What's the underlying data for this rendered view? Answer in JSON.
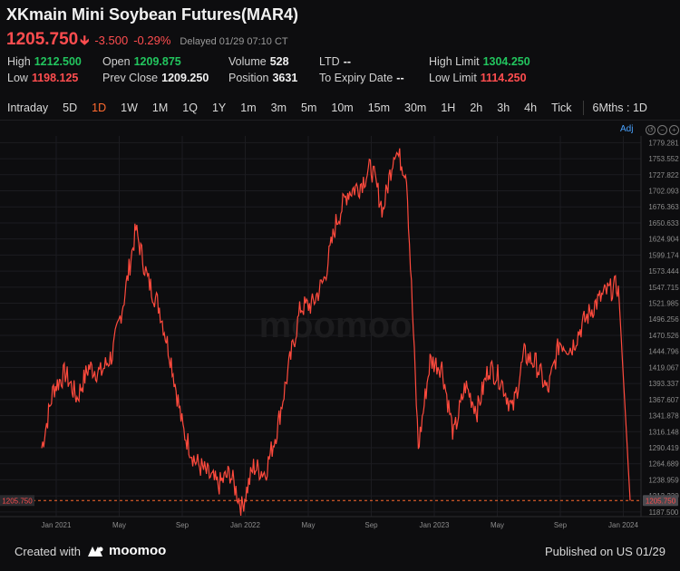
{
  "header": {
    "title": "XKmain Mini Soybean Futures(MAR4)",
    "price": "1205.750",
    "change": "-3.500",
    "change_pct": "-0.29%",
    "status": "Delayed 01/29 07:10 CT"
  },
  "stats": {
    "high_label": "High",
    "high": "1212.500",
    "low_label": "Low",
    "low": "1198.125",
    "open_label": "Open",
    "open": "1209.875",
    "prev_close_label": "Prev Close",
    "prev_close": "1209.250",
    "volume_label": "Volume",
    "volume": "528",
    "position_label": "Position",
    "position": "3631",
    "ltd_label": "LTD",
    "ltd": "--",
    "expiry_label": "To Expiry Date",
    "expiry": "--",
    "high_limit_label": "High Limit",
    "high_limit": "1304.250",
    "low_limit_label": "Low Limit",
    "low_limit": "1114.250"
  },
  "tabs": [
    "Intraday",
    "5D",
    "1D",
    "1W",
    "1M",
    "1Q",
    "1Y",
    "1m",
    "3m",
    "5m",
    "10m",
    "15m",
    "30m",
    "1H",
    "2h",
    "3h",
    "4h",
    "Tick"
  ],
  "active_tab": "1D",
  "period_label": "6Mths : 1D",
  "adj_label": "Adj",
  "watermark": "moomoo",
  "footer": {
    "created": "Created with",
    "brand": "moomoo",
    "published": "Published on US 01/29"
  },
  "colors": {
    "up": "#22c55e",
    "down": "#ff4d4f",
    "line": "#ff4a3d",
    "accent": "#ff6a2f"
  },
  "chart_data": {
    "type": "line",
    "x_ticks": [
      "Jan 2021",
      "May",
      "Sep",
      "Jan 2022",
      "May",
      "Sep",
      "Jan 2023",
      "May",
      "Sep",
      "Jan 2024"
    ],
    "y_ticks": [
      1187.5,
      1213.23,
      1238.959,
      1264.689,
      1290.419,
      1316.148,
      1341.878,
      1367.607,
      1393.337,
      1419.067,
      1444.796,
      1470.526,
      1496.256,
      1521.985,
      1547.715,
      1573.444,
      1599.174,
      1624.904,
      1650.633,
      1676.363,
      1702.093,
      1727.822,
      1753.552,
      1779.281
    ],
    "ylim": [
      1180,
      1790
    ],
    "last_value": 1205.75,
    "series": [
      {
        "x": [
          0,
          0.02,
          0.04,
          0.06,
          0.08,
          0.1,
          0.12,
          0.14,
          0.16,
          0.18,
          0.2,
          0.22,
          0.24,
          0.26,
          0.28,
          0.3,
          0.32,
          0.34,
          0.36,
          0.38,
          0.4,
          0.42,
          0.44,
          0.46,
          0.48,
          0.5,
          0.52,
          0.54,
          0.56,
          0.58,
          0.6,
          0.62,
          0.64,
          0.66,
          0.68,
          0.7,
          0.72,
          0.74,
          0.76,
          0.78,
          0.8,
          0.82,
          0.84,
          0.86,
          0.88,
          0.9,
          0.92,
          0.94,
          0.96,
          0.98,
          1.0
        ],
        "values": [
          1290,
          1385,
          1410,
          1370,
          1420,
          1410,
          1440,
          1530,
          1640,
          1560,
          1515,
          1430,
          1320,
          1270,
          1250,
          1230,
          1250,
          1195,
          1260,
          1250,
          1320,
          1420,
          1515,
          1520,
          1560,
          1650,
          1700,
          1710,
          1740,
          1670,
          1770,
          1730,
          1290,
          1430,
          1420,
          1310,
          1390,
          1350,
          1420,
          1400,
          1350,
          1440,
          1425,
          1380,
          1460,
          1450,
          1490,
          1520,
          1540,
          1550,
          1205.75
        ],
        "sample_dates": [
          "2020-12-10",
          "2021-01-01",
          "2021-01-20",
          "2021-02-05",
          "2021-02-22",
          "2021-03-10",
          "2021-03-28",
          "2021-04-15",
          "2021-05-02",
          "2021-05-18",
          "2021-06-05",
          "2021-06-22",
          "2021-07-10",
          "2021-07-28",
          "2021-08-15",
          "2021-09-02",
          "2021-09-20",
          "2021-10-08",
          "2021-10-25",
          "2021-11-12",
          "2021-11-30",
          "2021-12-18",
          "2022-01-05",
          "2022-01-23",
          "2022-02-10",
          "2022-02-28",
          "2022-03-18",
          "2022-04-05",
          "2022-04-23",
          "2022-05-10",
          "2022-05-28",
          "2022-06-15",
          "2022-07-03",
          "2022-07-21",
          "2022-08-08",
          "2022-08-26",
          "2022-09-13",
          "2022-10-01",
          "2022-10-19",
          "2022-11-06",
          "2022-11-24",
          "2022-12-12",
          "2022-12-30",
          "2023-01-17",
          "2023-02-04",
          "2023-02-22",
          "2023-03-12",
          "2023-03-30",
          "2023-04-17",
          "2023-05-05",
          "2024-01-29"
        ]
      }
    ]
  }
}
